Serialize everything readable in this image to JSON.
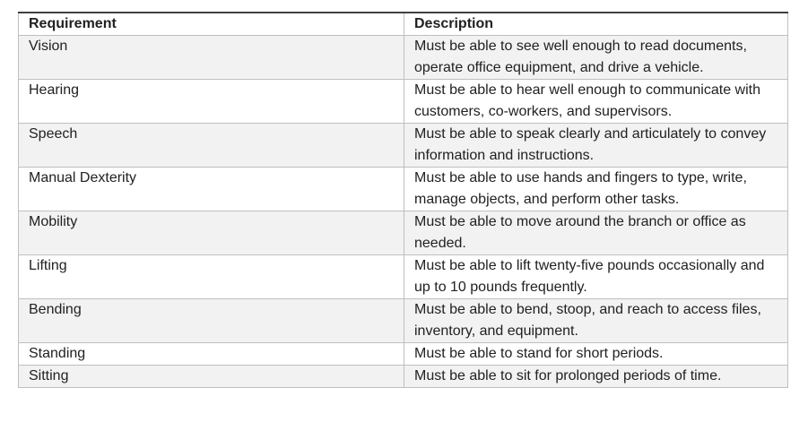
{
  "theme": {
    "page-bg": "#ffffff",
    "row-bg": "#ffffff",
    "row-alt-bg": "#f2f2f2",
    "border": "#bfbfbf",
    "top-border": "#404040",
    "text": "#212121"
  },
  "table": {
    "columns": [
      "Requirement",
      "Description"
    ],
    "rows": [
      {
        "requirement": "Vision",
        "description": "Must be able to see well enough to read documents, operate office equipment, and drive a vehicle."
      },
      {
        "requirement": "Hearing",
        "description": "Must be able to hear well enough to communicate with customers, co-workers, and supervisors."
      },
      {
        "requirement": "Speech",
        "description": "Must be able to speak clearly and articulately to convey information and instructions."
      },
      {
        "requirement": "Manual Dexterity",
        "description": "Must be able to use hands and fingers to type, write, manage objects, and perform other tasks."
      },
      {
        "requirement": "Mobility",
        "description": "Must be able to move around the branch or office as needed."
      },
      {
        "requirement": "Lifting",
        "description": "Must be able to lift twenty-five pounds occasionally and up to 10 pounds frequently."
      },
      {
        "requirement": "Bending",
        "description": "Must be able to bend, stoop, and reach to access files, inventory, and equipment."
      },
      {
        "requirement": "Standing",
        "description": "Must be able to stand for short periods."
      },
      {
        "requirement": "Sitting",
        "description": "Must be able to sit for prolonged periods of time."
      }
    ]
  }
}
